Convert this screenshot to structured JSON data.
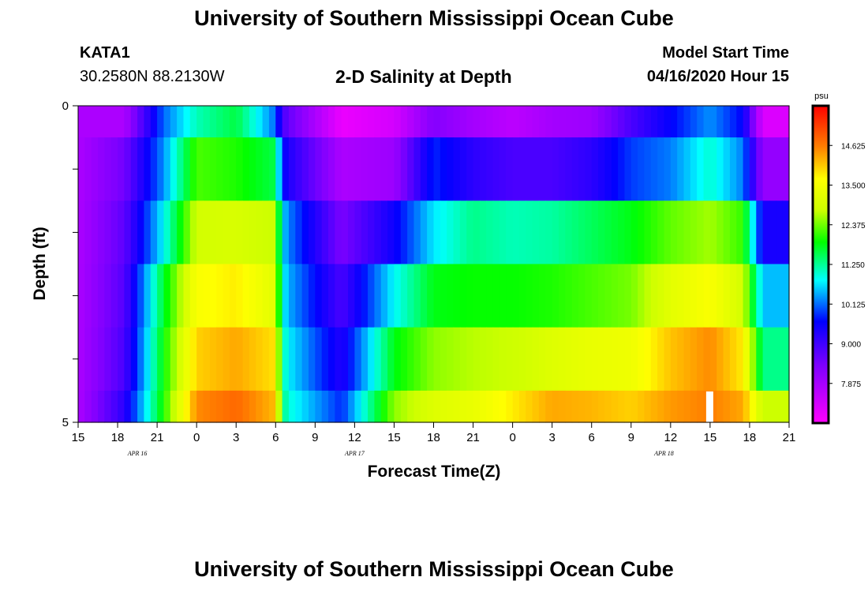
{
  "header": {
    "title": "University of Southern Mississippi Ocean Cube",
    "station": "KATA1",
    "coords": "30.2580N 88.2130W",
    "subtitle": "2-D Salinity at Depth",
    "start_label": "Model Start Time",
    "start_value": "04/16/2020 Hour 15"
  },
  "footer": {
    "title": "University of Southern Mississippi Ocean Cube"
  },
  "chart_data": {
    "type": "heatmap",
    "xlabel": "Forecast Time(Z)",
    "ylabel": "Depth (ft)",
    "x_range": [
      0,
      54
    ],
    "x_ticks": [
      {
        "pos": 0,
        "label": "15"
      },
      {
        "pos": 3,
        "label": "18"
      },
      {
        "pos": 6,
        "label": "21"
      },
      {
        "pos": 9,
        "label": "0"
      },
      {
        "pos": 12,
        "label": "3"
      },
      {
        "pos": 15,
        "label": "6"
      },
      {
        "pos": 18,
        "label": "9"
      },
      {
        "pos": 21,
        "label": "12"
      },
      {
        "pos": 24,
        "label": "15"
      },
      {
        "pos": 27,
        "label": "18"
      },
      {
        "pos": 30,
        "label": "21"
      },
      {
        "pos": 33,
        "label": "0"
      },
      {
        "pos": 36,
        "label": "3"
      },
      {
        "pos": 39,
        "label": "6"
      },
      {
        "pos": 42,
        "label": "9"
      },
      {
        "pos": 45,
        "label": "12"
      },
      {
        "pos": 48,
        "label": "15"
      },
      {
        "pos": 51,
        "label": "18"
      },
      {
        "pos": 54,
        "label": "21"
      }
    ],
    "date_labels": [
      {
        "pos": 4.5,
        "label": "APR 16"
      },
      {
        "pos": 21,
        "label": "APR 17"
      },
      {
        "pos": 44.5,
        "label": "APR 18"
      }
    ],
    "y_range": [
      0,
      5
    ],
    "y_ticks": [
      {
        "pos": 0,
        "label": "0"
      },
      {
        "pos": 1,
        "label": ""
      },
      {
        "pos": 2,
        "label": ""
      },
      {
        "pos": 3,
        "label": ""
      },
      {
        "pos": 4,
        "label": ""
      },
      {
        "pos": 5,
        "label": "5"
      }
    ],
    "colorbar": {
      "unit": "psu",
      "range": [
        6.75,
        15.75
      ],
      "ticks": [
        "7.875",
        "9.000",
        "10.125",
        "11.250",
        "12.375",
        "13.500",
        "14.625"
      ]
    },
    "depth_rows": [
      0,
      1,
      2,
      3,
      4,
      5
    ],
    "key_times": [
      0,
      3.5,
      6.5,
      9,
      12,
      14.8,
      15.8,
      20,
      24,
      27,
      30,
      33,
      36,
      39,
      42,
      45,
      48,
      50.5,
      52,
      54
    ],
    "salinity_profiles": [
      [
        7.8,
        7.8,
        10.1,
        11.1,
        11.6,
        10.2,
        8.7,
        7.0,
        7.3,
        8.3,
        7.9,
        7.6,
        7.9,
        8.0,
        8.9,
        9.6,
        10.3,
        9.6,
        7.2,
        7.2
      ],
      [
        7.8,
        8.5,
        10.3,
        12.2,
        12.0,
        11.6,
        9.4,
        7.8,
        8.0,
        9.8,
        9.2,
        8.9,
        8.9,
        9.2,
        9.9,
        10.2,
        11.0,
        10.2,
        8.1,
        8.1
      ],
      [
        7.8,
        8.7,
        10.8,
        12.9,
        13.0,
        12.8,
        10.3,
        8.4,
        9.5,
        10.7,
        11.3,
        11.1,
        11.2,
        11.5,
        11.8,
        12.3,
        12.6,
        12.1,
        9.4,
        9.4
      ],
      [
        7.8,
        8.8,
        11.7,
        13.6,
        13.8,
        13.2,
        10.5,
        8.9,
        10.8,
        11.8,
        11.9,
        11.9,
        12.0,
        12.2,
        12.4,
        13.2,
        13.6,
        12.9,
        10.5,
        10.5
      ],
      [
        7.8,
        8.9,
        11.9,
        14.0,
        14.3,
        13.9,
        10.8,
        9.3,
        11.8,
        12.5,
        12.7,
        12.8,
        13.1,
        13.3,
        13.4,
        14.1,
        14.5,
        13.8,
        11.3,
        11.3
      ],
      [
        7.8,
        9.2,
        12.0,
        14.5,
        14.8,
        14.2,
        11.0,
        9.8,
        12.5,
        13.1,
        13.3,
        13.8,
        14.3,
        14.2,
        14.0,
        14.4,
        14.6,
        14.3,
        12.8,
        12.8
      ]
    ],
    "missing_cell": {
      "time": 48,
      "depth_from": 4.5,
      "depth_to": 5
    }
  }
}
